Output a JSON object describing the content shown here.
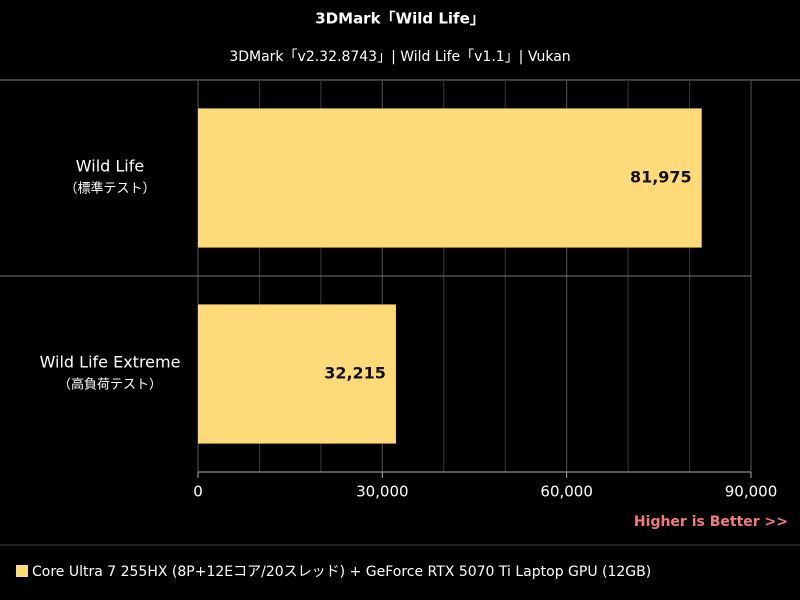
{
  "chart_data": {
    "type": "barh",
    "title": "3DMark「Wild Life」",
    "subtitle": "3DMark「v2.32.8743」| Wild Life「v1.1」| Vukan",
    "categories": [
      "Wild Life",
      "Wild Life Extreme"
    ],
    "category_notes": [
      "（標準テスト）",
      "（高負荷テスト）"
    ],
    "series": [
      {
        "name": "Core Ultra 7 255HX (8P+12Eコア/20スレッド) + GeForce RTX 5070 Ti Laptop GPU (12GB)",
        "color": "#fedb78",
        "values": [
          81975,
          32215
        ],
        "value_labels": [
          "81,975",
          "32,215"
        ]
      }
    ],
    "xlim": [
      0,
      90000
    ],
    "xticks": [
      0,
      {
        "value": 30000,
        "label": "30,000"
      },
      {
        "value": 60000,
        "label": "60,000"
      },
      {
        "value": 90000,
        "label": "90,000"
      }
    ],
    "grid": true,
    "minor_grid": true,
    "legend": "bottom-left",
    "annotation": "Higher is Better >>",
    "annotation_color": "#f47b7b"
  }
}
